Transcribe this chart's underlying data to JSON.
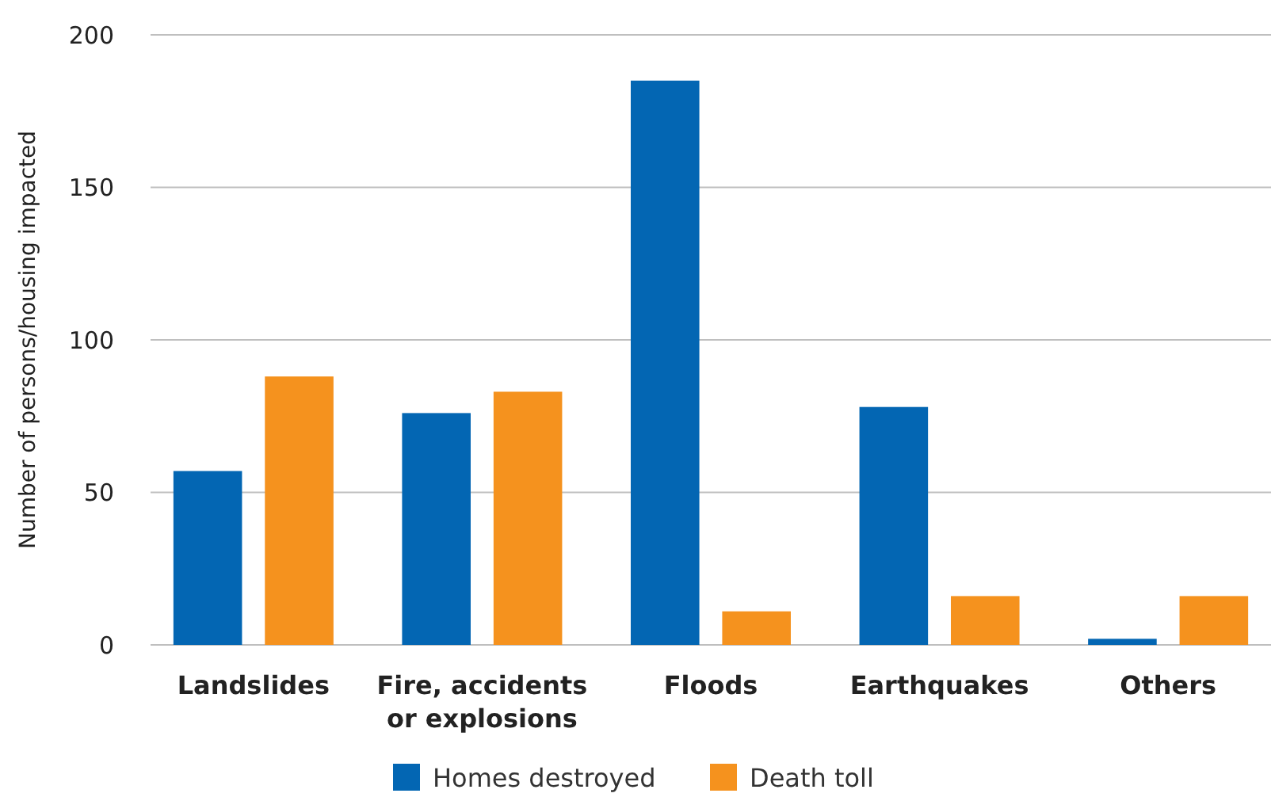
{
  "chart_data": {
    "type": "bar",
    "ylabel": "Number of persons/housing impacted",
    "categories": [
      "Landslides",
      "Fire, accidents or explosions",
      "Floods",
      "Earthquakes",
      "Others"
    ],
    "series": [
      {
        "name": "Homes destroyed",
        "color": "#0366b3",
        "values": [
          57,
          76,
          185,
          78,
          2
        ]
      },
      {
        "name": "Death toll",
        "color": "#f5921e",
        "values": [
          88,
          83,
          11,
          16,
          16
        ]
      }
    ],
    "ylim": [
      0,
      200
    ],
    "yticks": [
      0,
      50,
      100,
      150,
      200
    ],
    "grid": "y",
    "legend": "bottom"
  }
}
